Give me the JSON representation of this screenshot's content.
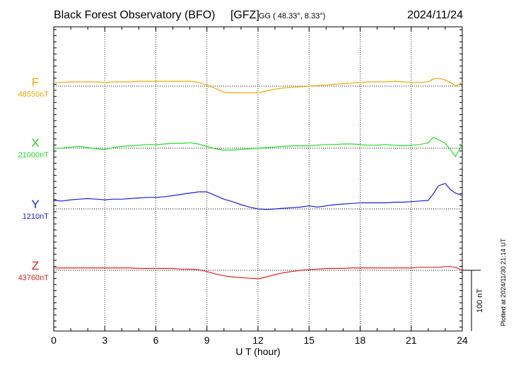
{
  "header": {
    "station": "Black Forest Observatory (BFO)",
    "agency": "[GFZ]",
    "coords": "GG ( 48.33°,   8.33°)",
    "date": "2024/11/24"
  },
  "footer": {
    "xlabel": "U T (hour)",
    "plotted_note": "Plotted at 2024/11/30 21:14 UT",
    "scale_label": "100 nT"
  },
  "chart_data": {
    "type": "line",
    "title": "Black Forest Observatory (BFO)",
    "xlabel": "U T (hour)",
    "ylabel": "",
    "xlim": [
      0,
      24
    ],
    "xticks": [
      0,
      3,
      6,
      9,
      12,
      15,
      18,
      21,
      24
    ],
    "xtick_labels": [
      "0",
      "3",
      "6",
      "9",
      "12",
      "15",
      "18",
      "21",
      "24"
    ],
    "grid": true,
    "scale_bar_nT": 100,
    "series": [
      {
        "name": "F",
        "baseline_label": "48550nT",
        "baseline": 48550,
        "color": "#f2a800",
        "x": [
          0,
          0.5,
          1,
          1.5,
          2,
          2.5,
          3,
          3.5,
          4,
          4.5,
          5,
          5.5,
          6,
          6.5,
          7,
          7.5,
          8,
          8.5,
          9,
          9.5,
          10,
          10.5,
          11,
          11.5,
          12,
          12.5,
          13,
          13.5,
          14,
          14.5,
          15,
          15.5,
          16,
          16.5,
          17,
          17.5,
          18,
          18.5,
          19,
          19.5,
          20,
          20.5,
          21,
          21.5,
          22,
          22.3,
          22.6,
          23,
          23.3,
          23.6,
          24
        ],
        "y": [
          48556,
          48556,
          48557,
          48557,
          48557,
          48557,
          48556,
          48557,
          48557,
          48557,
          48558,
          48558,
          48558,
          48558,
          48558,
          48558,
          48558,
          48556,
          48552,
          48546,
          48540,
          48539,
          48539,
          48539,
          48539,
          48542,
          48545,
          48547,
          48548,
          48549,
          48550,
          48551,
          48552,
          48553,
          48554,
          48555,
          48556,
          48557,
          48557,
          48557,
          48558,
          48557,
          48556,
          48556,
          48557,
          48562,
          48563,
          48560,
          48556,
          48550,
          48556
        ]
      },
      {
        "name": "X",
        "baseline_label": "21000nT",
        "baseline": 21000,
        "color": "#22dd22",
        "x": [
          0,
          0.5,
          1,
          1.5,
          2,
          2.5,
          3,
          3.5,
          4,
          4.5,
          5,
          5.5,
          6,
          6.5,
          7,
          7.5,
          8,
          8.5,
          9,
          9.5,
          10,
          10.5,
          11,
          11.5,
          12,
          12.5,
          13,
          13.5,
          14,
          14.5,
          15,
          15.5,
          16,
          16.5,
          17,
          17.5,
          18,
          18.5,
          19,
          19.5,
          20,
          20.5,
          21,
          21.5,
          22,
          22.3,
          22.6,
          23,
          23.3,
          23.6,
          24
        ],
        "y": [
          21000,
          21000,
          21002,
          21003,
          21001,
          20999,
          20998,
          21001,
          21003,
          21004,
          21005,
          21006,
          21006,
          21007,
          21008,
          21008,
          21009,
          21007,
          21003,
          20999,
          20997,
          20997,
          20998,
          20999,
          21000,
          21001,
          21002,
          21003,
          21004,
          21004,
          21004,
          21005,
          21006,
          21006,
          21007,
          21007,
          21006,
          21005,
          21005,
          21006,
          21005,
          21004,
          21005,
          21006,
          21009,
          21018,
          21014,
          21008,
          20998,
          20986,
          21007
        ]
      },
      {
        "name": "Y",
        "baseline_label": "1210nT",
        "baseline": 1210,
        "color": "#1f1fd8",
        "x": [
          0,
          0.5,
          1,
          1.5,
          2,
          2.5,
          3,
          3.5,
          4,
          4.5,
          5,
          5.5,
          6,
          6.5,
          7,
          7.5,
          8,
          8.5,
          9,
          9.5,
          10,
          10.5,
          11,
          11.5,
          12,
          12.5,
          13,
          13.5,
          14,
          14.5,
          15,
          15.5,
          16,
          16.5,
          17,
          17.5,
          18,
          18.5,
          19,
          19.5,
          20,
          20.5,
          21,
          21.5,
          22,
          22.3,
          22.6,
          23,
          23.3,
          23.6,
          24
        ],
        "y": [
          1224,
          1223,
          1225,
          1226,
          1227,
          1226,
          1225,
          1226,
          1226,
          1227,
          1228,
          1229,
          1229,
          1230,
          1232,
          1234,
          1236,
          1238,
          1238,
          1232,
          1226,
          1222,
          1217,
          1213,
          1210,
          1209,
          1210,
          1211,
          1212,
          1213,
          1215,
          1213,
          1215,
          1217,
          1218,
          1219,
          1220,
          1220,
          1220,
          1220,
          1221,
          1221,
          1222,
          1223,
          1224,
          1235,
          1248,
          1252,
          1242,
          1236,
          1232
        ]
      },
      {
        "name": "Z",
        "baseline_label": "43760nT",
        "baseline": 43760,
        "color": "#dd2222",
        "x": [
          0,
          0.5,
          1,
          1.5,
          2,
          2.5,
          3,
          3.5,
          4,
          4.5,
          5,
          5.5,
          6,
          6.5,
          7,
          7.5,
          8,
          8.5,
          9,
          9.5,
          10,
          10.5,
          11,
          11.5,
          12,
          12.5,
          13,
          13.5,
          14,
          14.5,
          15,
          15.5,
          16,
          16.5,
          17,
          17.5,
          18,
          18.5,
          19,
          19.5,
          20,
          20.5,
          21,
          21.5,
          22,
          22.3,
          22.6,
          23,
          23.3,
          23.6,
          24
        ],
        "y": [
          43764,
          43764,
          43764,
          43764,
          43764,
          43764,
          43764,
          43764,
          43764,
          43764,
          43763,
          43763,
          43763,
          43763,
          43763,
          43762,
          43762,
          43761,
          43758,
          43754,
          43751,
          43749,
          43748,
          43747,
          43746,
          43749,
          43753,
          43756,
          43758,
          43760,
          43761,
          43762,
          43763,
          43763,
          43763,
          43764,
          43764,
          43764,
          43764,
          43764,
          43764,
          43764,
          43764,
          43765,
          43765,
          43765,
          43765,
          43766,
          43766,
          43765,
          43760
        ]
      }
    ]
  }
}
